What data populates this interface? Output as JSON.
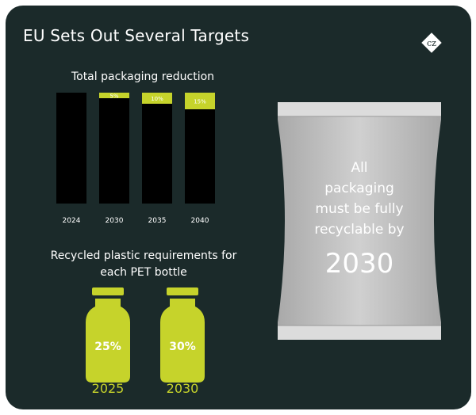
{
  "title": "EU Sets Out Several Targets",
  "logo_icon": "cz-diamond-logo",
  "colors": {
    "background": "#1b2a2a",
    "accent": "#c6d32b",
    "bar": "#000000",
    "pack": "#c9c9c9"
  },
  "chart_data": [
    {
      "type": "bar",
      "title": "Total packaging reduction",
      "categories": [
        "2024",
        "2030",
        "2035",
        "2040"
      ],
      "stacked": true,
      "series": [
        {
          "values": [
            100,
            95,
            90,
            85
          ],
          "color": "#000000"
        },
        {
          "values": [
            0,
            5,
            10,
            15
          ],
          "color": "#c6d32b"
        }
      ],
      "data_labels": [
        "",
        "5%",
        "10%",
        "15%"
      ],
      "ylim": [
        0,
        100
      ],
      "grid": false
    },
    {
      "type": "bar",
      "title": "Recycled plastic requirements for each PET bottle",
      "categories": [
        "2025",
        "2030"
      ],
      "values": [
        25,
        30
      ],
      "data_labels": [
        "25%",
        "30%"
      ],
      "unit": "%",
      "marker": "bottle-icon"
    }
  ],
  "packaging": {
    "lines": [
      "All",
      "packaging",
      "must be fully",
      "recyclable by"
    ],
    "year": "2030",
    "icon": "packaging-pouch-icon"
  }
}
